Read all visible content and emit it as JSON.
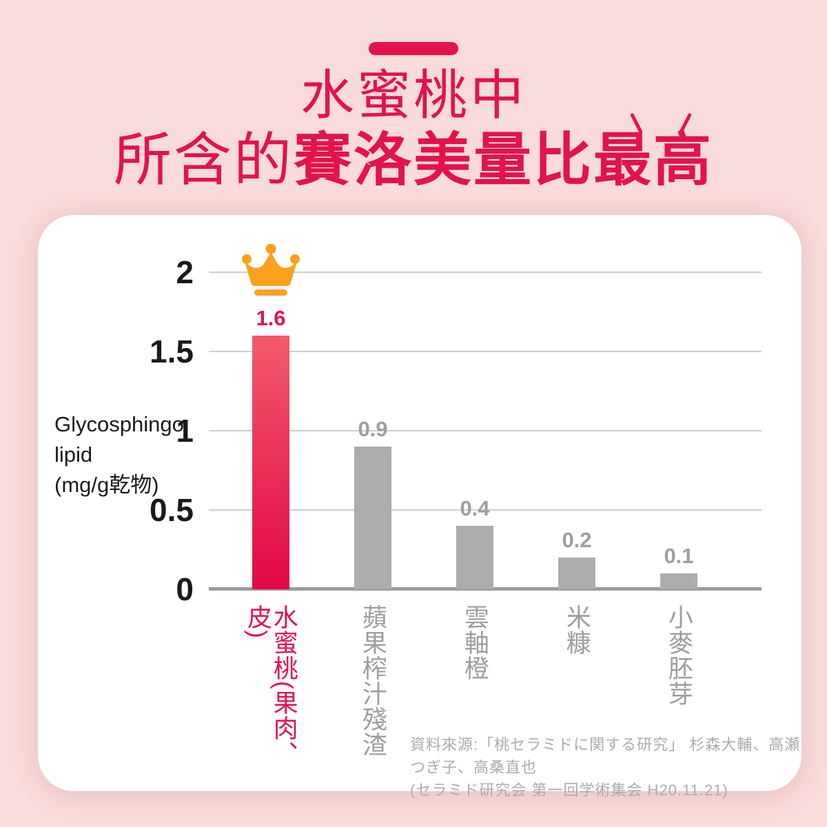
{
  "header": {
    "line1": "水蜜桃中",
    "line2_regular": "所含的",
    "line2_bold": "賽洛美量比最高"
  },
  "chart_data": {
    "type": "bar",
    "title": "",
    "ylabel": "Glycosphingo lipid (mg/g乾物)",
    "ylabel_lines": [
      "Glycosphingo",
      "lipid",
      "(mg/g乾物)"
    ],
    "ylim": [
      0,
      2
    ],
    "yticks": [
      0,
      0.5,
      1,
      1.5,
      2
    ],
    "grid": true,
    "legend": "none",
    "categories": [
      "水蜜桃(果肉、皮)",
      "蘋果榨汁殘渣",
      "雲軸橙",
      "米糠",
      "小麥胚芽"
    ],
    "values": [
      1.6,
      0.9,
      0.4,
      0.2,
      0.1
    ],
    "highlight_index": 0,
    "annotation": "crown icon above highest bar"
  },
  "source": {
    "line1": "資料來源:「桃セラミドに関する研究」 杉森大輔、高瀬つぎ子、高桑直也",
    "line2": "(セラミド研究会 第一回学術集会 H20.11.21)"
  },
  "colors": {
    "background": "#F8DBDA",
    "accent_red": "#E2134B",
    "bar_gradient_top": "#F25A6C",
    "bar_gradient_bottom": "#E30845",
    "bar_gray": "#ACACAC",
    "crown_orange": "#F9A01E",
    "text_dark": "#1A1A1A",
    "text_gray": "#9E9E9E",
    "source_gray": "#ABABAB"
  }
}
